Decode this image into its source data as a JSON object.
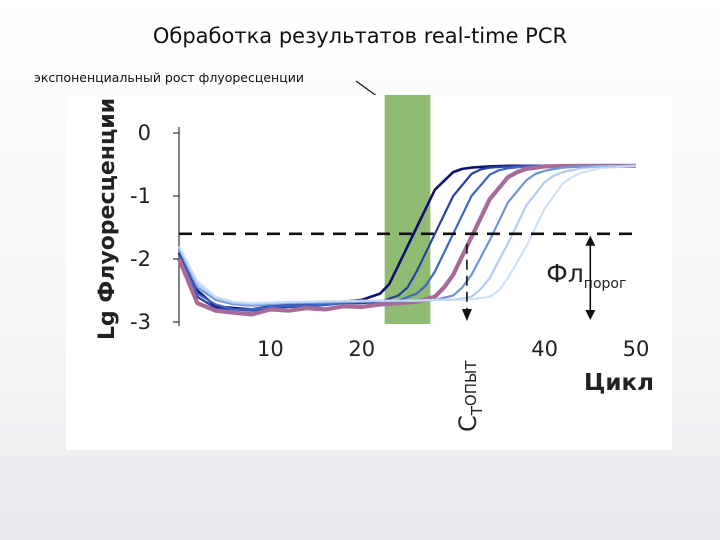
{
  "slide": {
    "title": "Обработка результатов real-time PCR",
    "callout": "экспоненциальный рост флуоресценции"
  },
  "colors": {
    "exp_region": "#8fbb73",
    "threshold": "#111111",
    "series": [
      "#101070",
      "#2a3fa0",
      "#3f67c2",
      "#a86a98",
      "#6f95d8",
      "#a8c3ec",
      "#c9dcf6"
    ]
  },
  "chart_data": {
    "type": "line",
    "title": "",
    "xlabel": "Цикл",
    "ylabel": "Lg Флуоресценции",
    "xlim": [
      0,
      50
    ],
    "ylim": [
      -3,
      0
    ],
    "x_ticks": [
      10,
      20,
      40,
      50
    ],
    "y_ticks": [
      0,
      -1,
      -2,
      -3
    ],
    "grid": false,
    "threshold": {
      "y": -1.6,
      "label_main": "Фл",
      "label_sub": "порог"
    },
    "ct": {
      "x": 31.5,
      "label_main": "С",
      "label_sub": "Т",
      "label_rest": "ОПЫТ"
    },
    "exp_region": [
      22.5,
      27.5
    ],
    "series": [
      {
        "x": [
          0,
          2,
          4,
          6,
          8,
          10,
          12,
          14,
          16,
          18,
          20,
          22,
          23,
          24,
          26,
          28,
          30,
          31,
          32,
          34,
          36,
          38,
          40,
          42,
          45,
          48,
          50
        ],
        "y": [
          -1.9,
          -2.5,
          -2.75,
          -2.78,
          -2.8,
          -2.75,
          -2.73,
          -2.72,
          -2.7,
          -2.68,
          -2.65,
          -2.55,
          -2.4,
          -2.1,
          -1.5,
          -0.9,
          -0.62,
          -0.57,
          -0.55,
          -0.53,
          -0.52,
          -0.52,
          -0.52,
          -0.52,
          -0.52,
          -0.52,
          -0.52
        ]
      },
      {
        "x": [
          0,
          2,
          4,
          6,
          8,
          10,
          12,
          14,
          16,
          18,
          20,
          22,
          24,
          25,
          26,
          28,
          30,
          32,
          33,
          34,
          36,
          38,
          40,
          44,
          50
        ],
        "y": [
          -2.0,
          -2.6,
          -2.78,
          -2.8,
          -2.82,
          -2.78,
          -2.76,
          -2.75,
          -2.73,
          -2.7,
          -2.7,
          -2.68,
          -2.58,
          -2.45,
          -2.2,
          -1.6,
          -1.0,
          -0.65,
          -0.58,
          -0.55,
          -0.53,
          -0.52,
          -0.52,
          -0.52,
          -0.52
        ]
      },
      {
        "x": [
          0,
          2,
          4,
          6,
          8,
          10,
          12,
          14,
          16,
          18,
          20,
          22,
          24,
          26,
          27,
          28,
          30,
          32,
          34,
          35,
          36,
          38,
          40,
          44,
          50
        ],
        "y": [
          -1.95,
          -2.55,
          -2.72,
          -2.8,
          -2.8,
          -2.76,
          -2.74,
          -2.74,
          -2.72,
          -2.7,
          -2.68,
          -2.67,
          -2.66,
          -2.55,
          -2.42,
          -2.2,
          -1.6,
          -1.0,
          -0.66,
          -0.59,
          -0.56,
          -0.53,
          -0.52,
          -0.52,
          -0.52
        ]
      },
      {
        "x": [
          0,
          2,
          4,
          6,
          8,
          10,
          12,
          14,
          16,
          18,
          20,
          22,
          24,
          26,
          28,
          29,
          30,
          32,
          34,
          36,
          37,
          38,
          40,
          44,
          50
        ],
        "y": [
          -2.0,
          -2.7,
          -2.82,
          -2.85,
          -2.88,
          -2.8,
          -2.82,
          -2.78,
          -2.8,
          -2.75,
          -2.76,
          -2.72,
          -2.7,
          -2.68,
          -2.6,
          -2.45,
          -2.25,
          -1.65,
          -1.05,
          -0.7,
          -0.62,
          -0.57,
          -0.53,
          -0.52,
          -0.52
        ]
      },
      {
        "x": [
          0,
          2,
          4,
          6,
          8,
          10,
          12,
          14,
          16,
          18,
          20,
          22,
          24,
          26,
          28,
          30,
          31,
          32,
          34,
          36,
          38,
          39,
          40,
          42,
          44,
          50
        ],
        "y": [
          -1.85,
          -2.45,
          -2.65,
          -2.72,
          -2.74,
          -2.72,
          -2.7,
          -2.7,
          -2.69,
          -2.68,
          -2.68,
          -2.67,
          -2.67,
          -2.66,
          -2.65,
          -2.58,
          -2.45,
          -2.25,
          -1.7,
          -1.1,
          -0.75,
          -0.65,
          -0.6,
          -0.55,
          -0.53,
          -0.52
        ]
      },
      {
        "x": [
          0,
          2,
          4,
          6,
          8,
          10,
          12,
          14,
          16,
          18,
          20,
          22,
          24,
          26,
          28,
          30,
          32,
          33,
          34,
          36,
          38,
          40,
          41,
          42,
          44,
          46,
          50
        ],
        "y": [
          -1.8,
          -2.4,
          -2.62,
          -2.7,
          -2.72,
          -2.7,
          -2.69,
          -2.68,
          -2.68,
          -2.67,
          -2.67,
          -2.66,
          -2.66,
          -2.66,
          -2.65,
          -2.65,
          -2.6,
          -2.48,
          -2.3,
          -1.75,
          -1.15,
          -0.78,
          -0.68,
          -0.62,
          -0.56,
          -0.53,
          -0.52
        ]
      },
      {
        "x": [
          0,
          2,
          4,
          6,
          8,
          10,
          12,
          14,
          16,
          18,
          20,
          22,
          24,
          26,
          28,
          30,
          32,
          34,
          35,
          36,
          38,
          40,
          42,
          43,
          44,
          46,
          50
        ],
        "y": [
          -1.8,
          -2.35,
          -2.6,
          -2.68,
          -2.7,
          -2.69,
          -2.68,
          -2.68,
          -2.67,
          -2.67,
          -2.66,
          -2.66,
          -2.66,
          -2.66,
          -2.65,
          -2.65,
          -2.64,
          -2.6,
          -2.5,
          -2.3,
          -1.8,
          -1.2,
          -0.8,
          -0.7,
          -0.63,
          -0.56,
          -0.52
        ]
      }
    ]
  }
}
